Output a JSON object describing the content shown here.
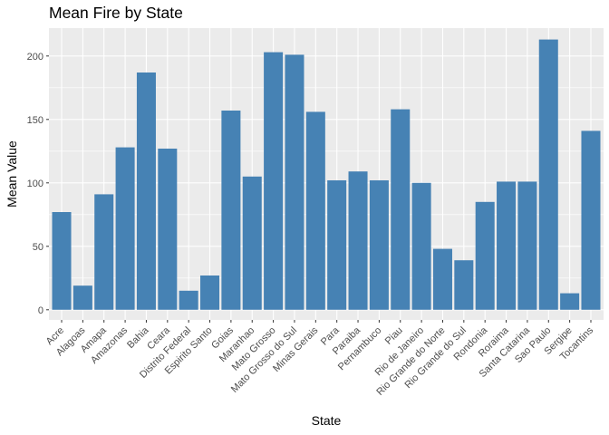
{
  "chart_data": {
    "type": "bar",
    "title": "Mean Fire by State",
    "xlabel": "State",
    "ylabel": "Mean Value",
    "ylim": [
      -8,
      222
    ],
    "yticks": [
      0,
      50,
      100,
      150,
      200
    ],
    "grid": true,
    "colors": {
      "bar": "#4682B4",
      "panel": "#EBEBEB",
      "grid": "#FFFFFF"
    },
    "categories": [
      "Acre",
      "Alagoas",
      "Amapa",
      "Amazonas",
      "Bahia",
      "Ceara",
      "Distrito Federal",
      "Espirito Santo",
      "Goias",
      "Maranhao",
      "Mato Grosso",
      "Mato Grosso do Sul",
      "Minas Gerais",
      "Para",
      "Paraiba",
      "Pernambuco",
      "Piau",
      "Rio de Janeiro",
      "Rio Grande do Norte",
      "Rio Grande do Sul",
      "Rondonia",
      "Roraima",
      "Santa Catarina",
      "Sao Paulo",
      "Sergipe",
      "Tocantins"
    ],
    "values": [
      77,
      19,
      91,
      128,
      187,
      127,
      15,
      27,
      157,
      105,
      203,
      201,
      156,
      102,
      109,
      102,
      158,
      100,
      48,
      39,
      85,
      101,
      101,
      213,
      13,
      141
    ]
  }
}
